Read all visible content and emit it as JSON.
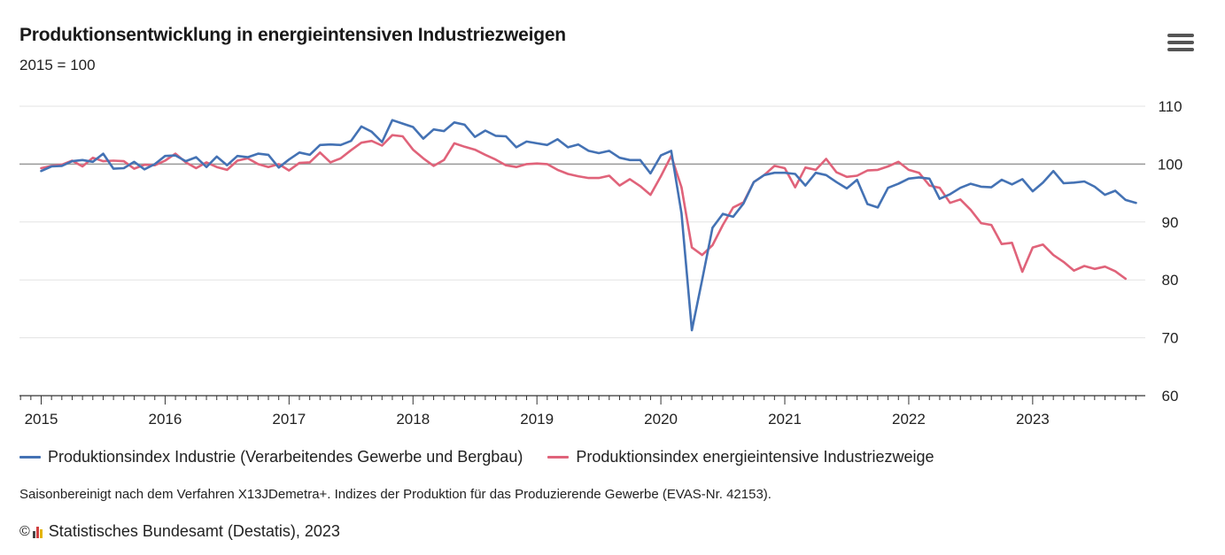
{
  "header": {
    "title": "Produktionsentwicklung in energieintensiven Industriezweigen",
    "subtitle": "2015 = 100"
  },
  "footer": {
    "footnote": "Saisonbereinigt nach dem Verfahren X13JDemetra+. Indizes der Produktion für das Produzierende Gewerbe (EVAS-Nr. 42153).",
    "copyright_symbol": "©",
    "credit": "Statistisches Bundesamt (Destatis), 2023"
  },
  "colors": {
    "industrie": "#4472b4",
    "energie": "#e0637a",
    "grid": "#e3e3e3",
    "baseline": "#999999",
    "axis": "#333333"
  },
  "chart_data": {
    "type": "line",
    "x_start": "2015-01",
    "x_frequency": "monthly",
    "x_ticks": [
      "2015",
      "2016",
      "2017",
      "2018",
      "2019",
      "2020",
      "2021",
      "2022",
      "2023"
    ],
    "y_ticks": [
      60,
      70,
      80,
      90,
      100,
      110
    ],
    "ylim": [
      60,
      110
    ],
    "reference_line": 100,
    "grid": true,
    "legend_position": "bottom-left",
    "series": [
      {
        "name": "Produktionsindex Industrie (Verarbeitendes Gewerbe und Bergbau)",
        "color": "#4472b4",
        "values": [
          98.8,
          99.6,
          99.7,
          100.5,
          100.7,
          100.4,
          101.8,
          99.2,
          99.3,
          100.4,
          99.1,
          100.0,
          101.4,
          101.5,
          100.5,
          101.2,
          99.5,
          101.3,
          99.8,
          101.4,
          101.2,
          101.8,
          101.6,
          99.4,
          100.8,
          102.0,
          101.6,
          103.3,
          103.4,
          103.3,
          104.0,
          106.5,
          105.6,
          103.8,
          107.6,
          107.0,
          106.4,
          104.4,
          106.0,
          105.7,
          107.2,
          106.8,
          104.7,
          105.8,
          104.9,
          104.8,
          102.9,
          103.9,
          103.6,
          103.3,
          104.3,
          102.9,
          103.4,
          102.3,
          101.9,
          102.3,
          101.1,
          100.7,
          100.7,
          98.4,
          101.5,
          102.3,
          91.5,
          71.3,
          80.0,
          89.0,
          91.4,
          90.9,
          93.2,
          96.9,
          98.1,
          98.5,
          98.5,
          98.3,
          96.3,
          98.5,
          98.1,
          96.9,
          95.8,
          97.3,
          93.1,
          92.5,
          95.9,
          96.6,
          97.5,
          97.7,
          97.5,
          94.0,
          94.8,
          95.9,
          96.6,
          96.1,
          96.0,
          97.3,
          96.5,
          97.4,
          95.3,
          96.8,
          98.8,
          96.7,
          96.8,
          97.0,
          96.1,
          94.7,
          95.4,
          93.8,
          93.3
        ]
      },
      {
        "name": "Produktionsindex energieintensive Industriezweige",
        "color": "#e0637a",
        "values": [
          99.3,
          99.7,
          99.9,
          100.6,
          99.6,
          101.1,
          100.5,
          100.6,
          100.5,
          99.2,
          99.9,
          99.8,
          100.6,
          101.8,
          100.3,
          99.3,
          100.3,
          99.5,
          99.0,
          100.6,
          101.0,
          100.0,
          99.5,
          100.0,
          98.9,
          100.2,
          100.3,
          102.0,
          100.3,
          101.0,
          102.4,
          103.7,
          104.0,
          103.2,
          105.0,
          104.8,
          102.5,
          101.0,
          99.7,
          100.7,
          103.6,
          103.0,
          102.5,
          101.6,
          100.8,
          99.8,
          99.5,
          100.0,
          100.1,
          100.0,
          99.0,
          98.3,
          97.9,
          97.6,
          97.6,
          98.0,
          96.3,
          97.4,
          96.2,
          94.7,
          97.9,
          101.4,
          96.0,
          85.6,
          84.3,
          86.0,
          89.5,
          92.5,
          93.4,
          96.9,
          98.1,
          99.7,
          99.3,
          96.0,
          99.4,
          99.0,
          100.9,
          98.6,
          97.8,
          98.0,
          98.9,
          99.0,
          99.6,
          100.4,
          99.0,
          98.5,
          96.3,
          95.9,
          93.3,
          93.9,
          92.1,
          89.8,
          89.5,
          86.2,
          86.4,
          81.4,
          85.6,
          86.1,
          84.3,
          83.1,
          81.6,
          82.4,
          81.9,
          82.3,
          81.5,
          80.2
        ]
      }
    ]
  }
}
